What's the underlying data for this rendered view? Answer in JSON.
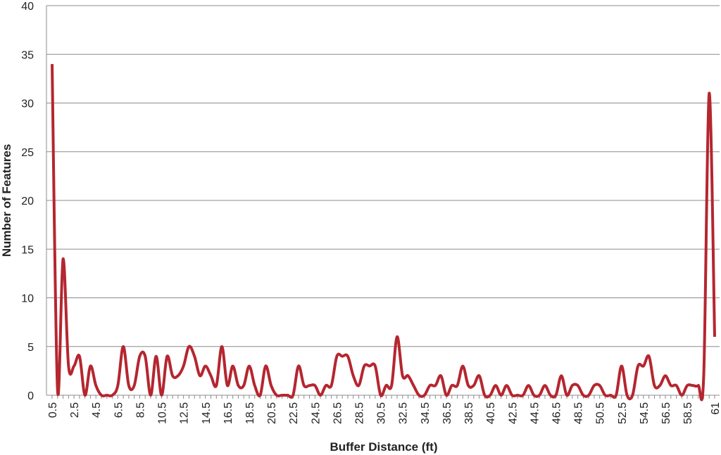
{
  "chart_data": {
    "type": "line",
    "x_label": "Buffer Distance (ft)",
    "y_label": "Number of Features",
    "categories": [
      "0.5",
      null,
      null,
      null,
      "2.5",
      null,
      null,
      null,
      "4.5",
      null,
      null,
      null,
      "6.5",
      null,
      null,
      null,
      "8.5",
      null,
      null,
      null,
      "10.5",
      null,
      null,
      null,
      "12.5",
      null,
      null,
      null,
      "14.5",
      null,
      null,
      null,
      "16.5",
      null,
      null,
      null,
      "18.5",
      null,
      null,
      null,
      "20.5",
      null,
      null,
      null,
      "22.5",
      null,
      null,
      null,
      "24.5",
      null,
      null,
      null,
      "26.5",
      null,
      null,
      null,
      "28.5",
      null,
      null,
      null,
      "30.5",
      null,
      null,
      null,
      "32.5",
      null,
      null,
      null,
      "34.5",
      null,
      null,
      null,
      "36.5",
      null,
      null,
      null,
      "38.5",
      null,
      null,
      null,
      "40.5",
      null,
      null,
      null,
      "42.5",
      null,
      null,
      null,
      "44.5",
      null,
      null,
      null,
      "46.5",
      null,
      null,
      null,
      "48.5",
      null,
      null,
      null,
      "50.5",
      null,
      null,
      null,
      "52.5",
      null,
      null,
      null,
      "54.5",
      null,
      null,
      null,
      "56.5",
      null,
      null,
      null,
      "58.5",
      null,
      null,
      null,
      null,
      "61"
    ],
    "series": [
      {
        "color": "#b5262f",
        "values": [
          34,
          0.5,
          14,
          3,
          3,
          4,
          0,
          3,
          1,
          0,
          0,
          0,
          1,
          5,
          1,
          1,
          4,
          4,
          0,
          4,
          0,
          4,
          2,
          2,
          3,
          5,
          4,
          2,
          3,
          2,
          1,
          5,
          1,
          3,
          1,
          1,
          3,
          1,
          0,
          3,
          1,
          0,
          0,
          0,
          0,
          3,
          1,
          1,
          1,
          0,
          1,
          1,
          4,
          4,
          4,
          2,
          1,
          3,
          3,
          3,
          0,
          1,
          1,
          6,
          2,
          2,
          1,
          0,
          0,
          1,
          1,
          2,
          0,
          1,
          1,
          3,
          1,
          1,
          2,
          0,
          0,
          1,
          0,
          1,
          0,
          0,
          0,
          1,
          0,
          0,
          1,
          0,
          0,
          2,
          0,
          1,
          1,
          0,
          0,
          1,
          1,
          0,
          0,
          0,
          3,
          0,
          0,
          3,
          3,
          4,
          1,
          1,
          2,
          1,
          1,
          0,
          1,
          1,
          1,
          2,
          31,
          6
        ]
      }
    ],
    "ylim": [
      0,
      40
    ],
    "yticks": [
      0,
      5,
      10,
      15,
      20,
      25,
      30,
      35,
      40
    ],
    "grid": true
  }
}
